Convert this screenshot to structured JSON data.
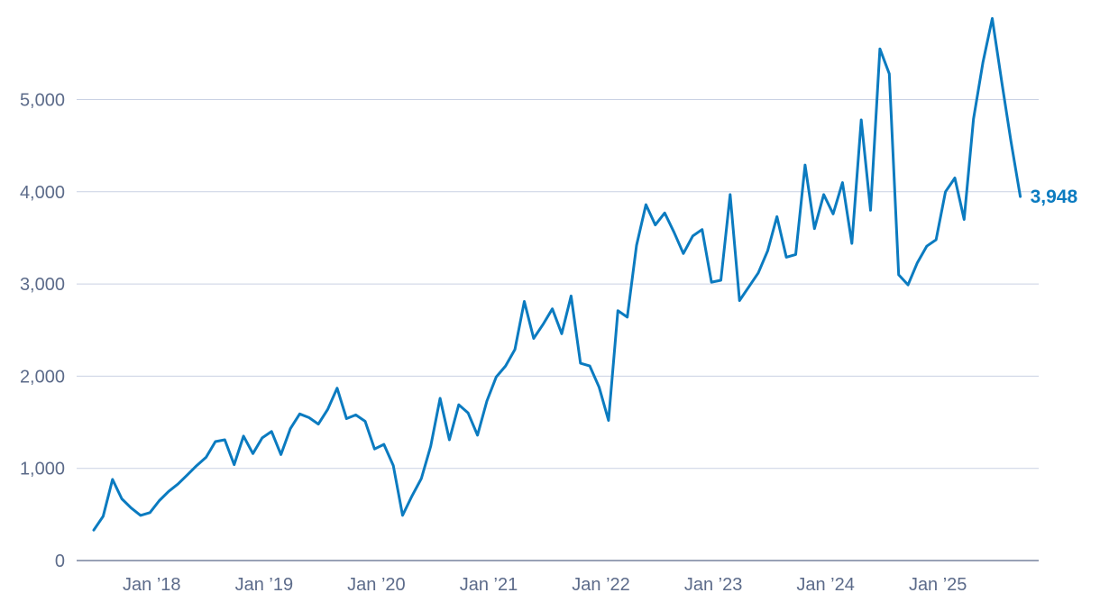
{
  "chart_data": {
    "type": "line",
    "title": "",
    "xlabel": "",
    "ylabel": "",
    "ylim": [
      0,
      6000
    ],
    "grid": true,
    "colors": {
      "series": "#0b7bc0",
      "grid": "#c9d1e3",
      "axis_text": "#5c6b8a"
    },
    "y_ticks": [
      "0",
      "1,000",
      "2,000",
      "3,000",
      "4,000",
      "5,000"
    ],
    "y_tick_values": [
      0,
      1000,
      2000,
      3000,
      4000,
      5000
    ],
    "x_ticks": [
      "Jan ’18",
      "Jan ’19",
      "Jan ’20",
      "Jan ’21",
      "Jan ’22",
      "Jan ’23",
      "Jan ’24",
      "Jan ’25"
    ],
    "x_tick_dates": [
      "2018-01",
      "2019-01",
      "2020-01",
      "2021-01",
      "2022-01",
      "2023-01",
      "2024-01",
      "2025-01"
    ],
    "end_label": "3,948",
    "series": [
      {
        "x": [
          "2017-07",
          "2017-08",
          "2017-09",
          "2017-10",
          "2017-11",
          "2017-12",
          "2018-01",
          "2018-02",
          "2018-03",
          "2018-04",
          "2018-05",
          "2018-06",
          "2018-07",
          "2018-08",
          "2018-09",
          "2018-10",
          "2018-11",
          "2018-12",
          "2019-01",
          "2019-02",
          "2019-03",
          "2019-04",
          "2019-05",
          "2019-06",
          "2019-07",
          "2019-08",
          "2019-09",
          "2019-10",
          "2019-11",
          "2019-12",
          "2020-01",
          "2020-02",
          "2020-03",
          "2020-04",
          "2020-05",
          "2020-06",
          "2020-07",
          "2020-08",
          "2020-09",
          "2020-10",
          "2020-11",
          "2020-12",
          "2021-01",
          "2021-02",
          "2021-03",
          "2021-04",
          "2021-05",
          "2021-06",
          "2021-07",
          "2021-08",
          "2021-09",
          "2021-10",
          "2021-11",
          "2021-12",
          "2022-01",
          "2022-02",
          "2022-03",
          "2022-04",
          "2022-05",
          "2022-06",
          "2022-07",
          "2022-08",
          "2022-09",
          "2022-10",
          "2022-11",
          "2022-12",
          "2023-01",
          "2023-02",
          "2023-03",
          "2023-04",
          "2023-05",
          "2023-06",
          "2023-07",
          "2023-08",
          "2023-09",
          "2023-10",
          "2023-11",
          "2023-12",
          "2024-01",
          "2024-02",
          "2024-03",
          "2024-04",
          "2024-05",
          "2024-06",
          "2024-07",
          "2024-08",
          "2024-09",
          "2024-10",
          "2024-11",
          "2024-12",
          "2025-01",
          "2025-02",
          "2025-03",
          "2025-04",
          "2025-05",
          "2025-06",
          "2025-07",
          "2025-08",
          "2025-09",
          "2025-10"
        ],
        "values": [
          330,
          480,
          880,
          670,
          570,
          490,
          520,
          650,
          750,
          830,
          930,
          1030,
          1120,
          1290,
          1310,
          1040,
          1350,
          1160,
          1330,
          1400,
          1150,
          1430,
          1590,
          1550,
          1480,
          1640,
          1870,
          1540,
          1580,
          1510,
          1210,
          1260,
          1030,
          490,
          700,
          890,
          1240,
          1760,
          1310,
          1690,
          1600,
          1360,
          1730,
          1990,
          2110,
          2290,
          2810,
          2410,
          2560,
          2730,
          2460,
          2870,
          2140,
          2110,
          1880,
          1520,
          2710,
          2640,
          3420,
          3860,
          3640,
          3770,
          3560,
          3330,
          3520,
          3590,
          3020,
          3040,
          3970,
          2820,
          2970,
          3120,
          3360,
          3730,
          3290,
          3320,
          4290,
          3600,
          3970,
          3760,
          4100,
          3440,
          4780,
          3800,
          5550,
          5280,
          3100,
          2990,
          3230,
          3410,
          3480,
          4000,
          4150,
          3700,
          4790,
          5400,
          5880,
          5200,
          4550,
          3948
        ]
      }
    ]
  }
}
